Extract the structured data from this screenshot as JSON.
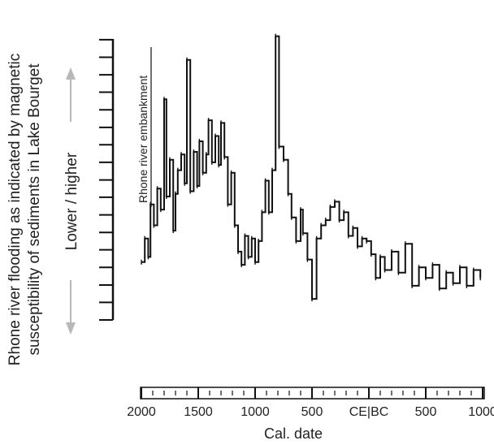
{
  "chart_data": {
    "type": "line",
    "ylabel_line1": "Rhone river flooding as indicated by magnetic",
    "ylabel_line2": "susceptibility of sediments in Lake Bourget",
    "direction_label": "Lower  /  higher",
    "xlabel": "Cal. date",
    "annotation": "Rhone river embankment",
    "x_tick_labels": [
      "2000",
      "1500",
      "1000",
      "500",
      "CE|BC",
      "500",
      "1000"
    ],
    "x_tick_positions_years_bp": [
      0,
      500,
      1000,
      1500,
      2000,
      2500,
      3000
    ],
    "xlim_years_bp": [
      0,
      3000
    ],
    "ylim": [
      0,
      10
    ],
    "y_ticks": [
      0,
      0.67,
      1.33,
      2,
      2.67,
      3.33,
      4,
      4.67,
      5.33,
      6,
      6.67,
      7.33,
      8,
      8.67,
      9.33,
      10,
      10.67
    ],
    "colors": {
      "line": "#111111",
      "axis": "#111111",
      "arrow": "#b8b8b8"
    },
    "series": [
      {
        "x": [
          0,
          30,
          60,
          80,
          110,
          140,
          170,
          200,
          220,
          250,
          280,
          300,
          320,
          350,
          380,
          400,
          430,
          460,
          490,
          510,
          540,
          570,
          590,
          620,
          650,
          680,
          700,
          730,
          760,
          790,
          820,
          850,
          880,
          910,
          940,
          970,
          1000,
          1030,
          1060,
          1090,
          1120,
          1150,
          1180,
          1210,
          1250,
          1290,
          1320,
          1360,
          1400,
          1420,
          1460,
          1500,
          1540,
          1580,
          1620,
          1660,
          1700,
          1740,
          1780,
          1820,
          1860,
          1900,
          1940,
          1980,
          2020,
          2060,
          2100,
          2140,
          2200,
          2260,
          2320,
          2380,
          2440,
          2500,
          2560,
          2620,
          2680,
          2740,
          2800,
          2860,
          2920,
          2980
        ],
        "y": [
          2.2,
          3.1,
          2.4,
          4.4,
          3.6,
          5.0,
          4.2,
          8.4,
          4.7,
          6.1,
          3.4,
          4.8,
          5.7,
          6.3,
          5.2,
          9.9,
          4.9,
          6.4,
          5.1,
          6.8,
          5.6,
          6.3,
          7.6,
          6.0,
          7.0,
          5.9,
          7.5,
          6.2,
          4.4,
          5.6,
          3.6,
          2.6,
          2.1,
          3.2,
          2.4,
          3.1,
          2.2,
          3.0,
          4.1,
          5.3,
          4.1,
          5.7,
          10.8,
          6.6,
          6.1,
          4.8,
          3.9,
          3.0,
          4.2,
          3.3,
          2.3,
          0.8,
          3.1,
          3.6,
          3.8,
          4.3,
          4.5,
          3.8,
          4.1,
          3.2,
          3.5,
          2.8,
          3.1,
          3.0,
          2.5,
          1.6,
          2.4,
          1.9,
          2.6,
          1.8,
          2.9,
          1.3,
          2.0,
          1.6,
          2.1,
          1.2,
          1.8,
          1.4,
          2.0,
          1.3,
          1.9,
          1.6
        ]
      }
    ]
  }
}
